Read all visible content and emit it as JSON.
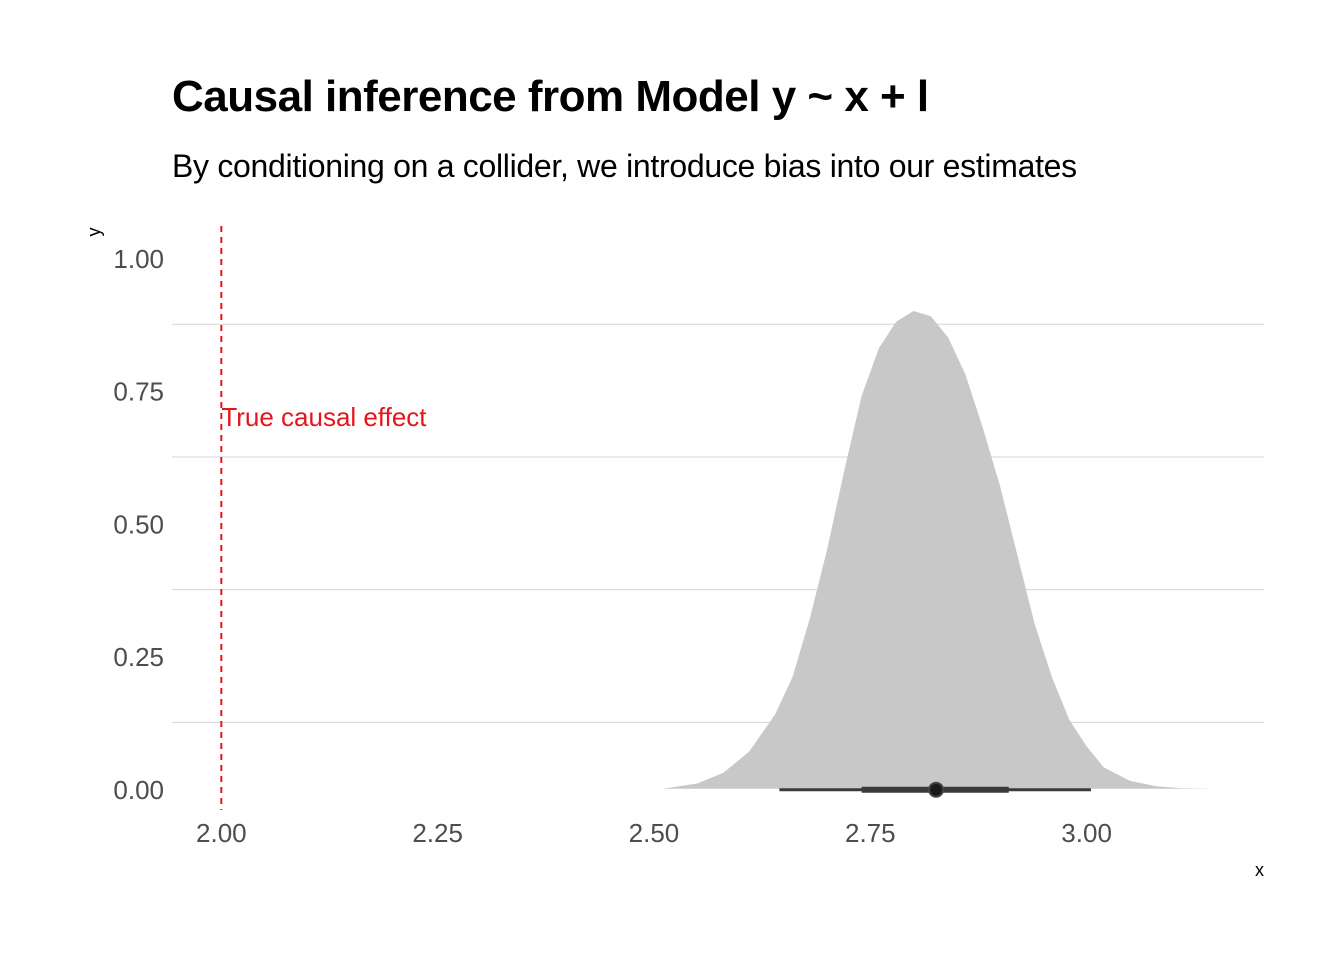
{
  "chart_data": {
    "type": "area",
    "title": "Causal inference from Model y ~ x + l",
    "subtitle": "By conditioning on a collider, we introduce bias into our estimates",
    "xlabel": "x",
    "ylabel": "y",
    "xlim": [
      1.943,
      3.205
    ],
    "ylim": [
      -0.04,
      1.06
    ],
    "x_ticks": [
      2.0,
      2.25,
      2.5,
      2.75,
      3.0
    ],
    "x_tick_labels": [
      "2.00",
      "2.25",
      "2.50",
      "2.75",
      "3.00"
    ],
    "y_ticks": [
      0.0,
      0.25,
      0.5,
      0.75,
      1.0
    ],
    "y_tick_labels": [
      "0.00",
      "0.25",
      "0.50",
      "0.75",
      "1.00"
    ],
    "grid": "horizontal",
    "density": {
      "x": [
        2.51,
        2.55,
        2.58,
        2.61,
        2.64,
        2.66,
        2.68,
        2.7,
        2.72,
        2.74,
        2.76,
        2.78,
        2.8,
        2.82,
        2.84,
        2.86,
        2.88,
        2.9,
        2.92,
        2.94,
        2.96,
        2.98,
        3.0,
        3.02,
        3.05,
        3.08,
        3.11,
        3.15
      ],
      "y": [
        0.0,
        0.01,
        0.03,
        0.07,
        0.14,
        0.21,
        0.32,
        0.45,
        0.6,
        0.74,
        0.83,
        0.88,
        0.9,
        0.89,
        0.85,
        0.78,
        0.68,
        0.57,
        0.44,
        0.31,
        0.21,
        0.13,
        0.08,
        0.04,
        0.015,
        0.005,
        0.001,
        0.0
      ],
      "fill": "#c8c8c8"
    },
    "interval": {
      "point": 2.826,
      "inner": [
        2.74,
        2.91
      ],
      "outer": [
        2.645,
        3.005
      ],
      "color": "#3a3a3a"
    },
    "reference_line": {
      "x": 2.0,
      "label": "True causal effect",
      "color": "#e8141c",
      "style": "dashed",
      "label_y": 0.7
    }
  }
}
